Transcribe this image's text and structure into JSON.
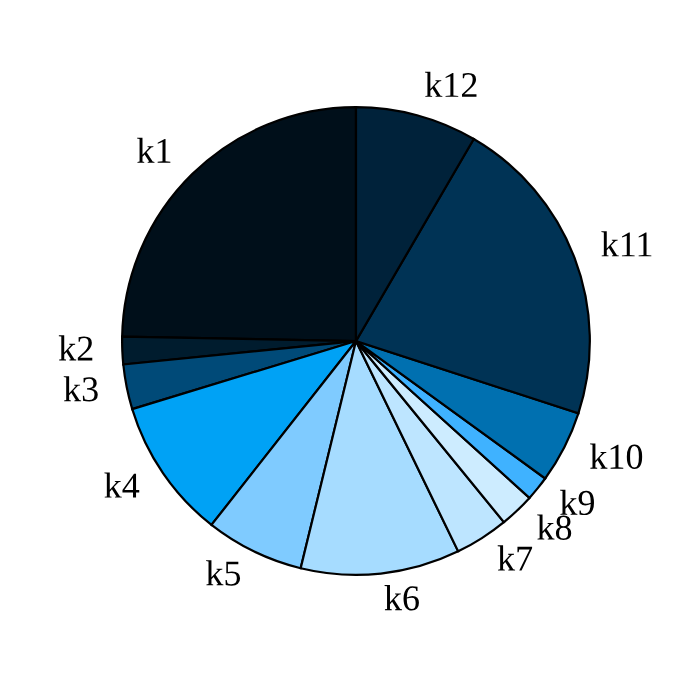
{
  "chart_data": {
    "type": "pie",
    "categories": [
      "k1",
      "k2",
      "k3",
      "k4",
      "k5",
      "k6",
      "k7",
      "k8",
      "k9",
      "k10",
      "k11",
      "k12"
    ],
    "values": [
      24.7,
      1.9,
      3.1,
      9.7,
      6.8,
      11.0,
      3.7,
      2.4,
      1.7,
      5.0,
      21.6,
      8.4
    ],
    "colors": [
      "#000f1a",
      "#001c2e",
      "#004a78",
      "#00a2f5",
      "#7fcbff",
      "#a6dcff",
      "#bde5ff",
      "#cdecff",
      "#3fb2ff",
      "#0070b0",
      "#003355",
      "#00223a"
    ]
  }
}
